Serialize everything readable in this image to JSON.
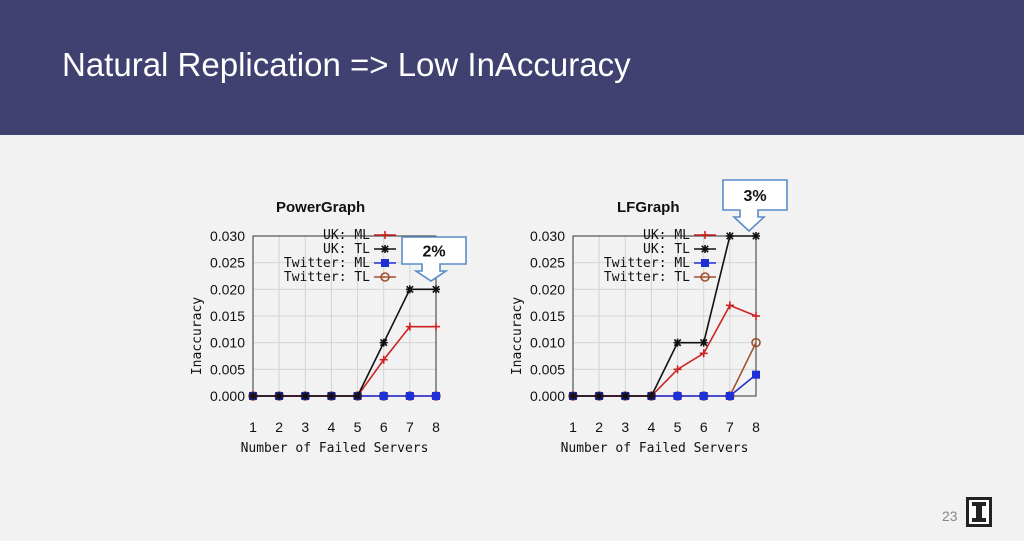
{
  "slide": {
    "title": "Natural Replication => Low InAccuracy",
    "page_number": "23",
    "header_color": "#404071"
  },
  "callouts": [
    {
      "text": "2%"
    },
    {
      "text": "3%"
    }
  ],
  "chart_data": [
    {
      "type": "line",
      "title": "PowerGraph",
      "xlabel": "Number of Failed Servers",
      "ylabel": "Inaccuracy",
      "x": [
        1,
        2,
        3,
        4,
        5,
        6,
        7,
        8
      ],
      "xlim": [
        1,
        8
      ],
      "ylim": [
        0,
        0.03
      ],
      "yticks": [
        "0.000",
        "0.005",
        "0.010",
        "0.015",
        "0.020",
        "0.025",
        "0.030"
      ],
      "grid": true,
      "legend_position": "top-left",
      "series": [
        {
          "name": "UK: ML",
          "color": "#cc2222",
          "marker": "plus",
          "values": [
            0,
            0,
            0,
            0,
            0,
            0.0068,
            0.013,
            0.013
          ]
        },
        {
          "name": "UK: TL",
          "color": "#111111",
          "marker": "star",
          "values": [
            0,
            0,
            0,
            0,
            0,
            0.01,
            0.02,
            0.02
          ]
        },
        {
          "name": "Twitter: ML",
          "color": "#1f2fd6",
          "marker": "square",
          "values": [
            0,
            0,
            0,
            0,
            0,
            0,
            0,
            0
          ]
        },
        {
          "name": "Twitter: TL",
          "color": "#a0522d",
          "marker": "circle",
          "values": [
            0,
            0,
            0,
            0,
            0,
            0,
            0,
            0
          ]
        }
      ]
    },
    {
      "type": "line",
      "title": "LFGraph",
      "xlabel": "Number of Failed Servers",
      "ylabel": "Inaccuracy",
      "x": [
        1,
        2,
        3,
        4,
        5,
        6,
        7,
        8
      ],
      "xlim": [
        1,
        8
      ],
      "ylim": [
        0,
        0.03
      ],
      "yticks": [
        "0.000",
        "0.005",
        "0.010",
        "0.015",
        "0.020",
        "0.025",
        "0.030"
      ],
      "grid": true,
      "legend_position": "top-left",
      "series": [
        {
          "name": "UK: ML",
          "color": "#cc2222",
          "marker": "plus",
          "values": [
            0,
            0,
            0,
            0,
            0.005,
            0.008,
            0.017,
            0.015
          ]
        },
        {
          "name": "UK: TL",
          "color": "#111111",
          "marker": "star",
          "values": [
            0,
            0,
            0,
            0,
            0.01,
            0.01,
            0.03,
            0.03
          ]
        },
        {
          "name": "Twitter: ML",
          "color": "#1f2fd6",
          "marker": "square",
          "values": [
            0,
            0,
            0,
            0,
            0,
            0,
            0,
            0.004
          ]
        },
        {
          "name": "Twitter: TL",
          "color": "#a0522d",
          "marker": "circle",
          "values": [
            0,
            0,
            0,
            0,
            0,
            0,
            0,
            0.01
          ]
        }
      ]
    }
  ]
}
